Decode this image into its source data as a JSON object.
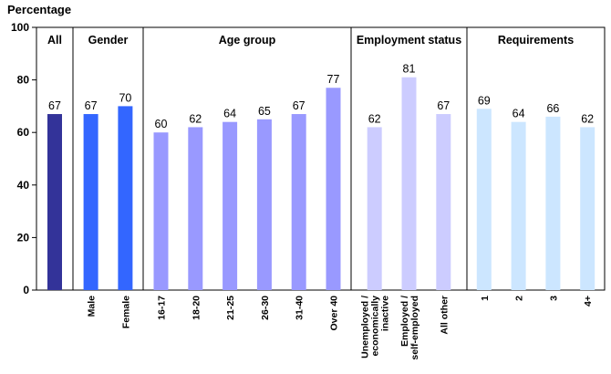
{
  "chart_data": {
    "type": "bar",
    "title": "",
    "ylabel": "Percentage",
    "xlabel": "",
    "ylim": [
      0,
      100
    ],
    "yticks": [
      0,
      20,
      40,
      60,
      80,
      100
    ],
    "grid": false,
    "groups": [
      {
        "name": "All",
        "color": "#333399",
        "bars": [
          {
            "category": "",
            "value": 67
          }
        ]
      },
      {
        "name": "Gender",
        "color": "#3366ff",
        "bars": [
          {
            "category": "Male",
            "value": 67
          },
          {
            "category": "Female",
            "value": 70
          }
        ]
      },
      {
        "name": "Age group",
        "color": "#9999ff",
        "bars": [
          {
            "category": "16-17",
            "value": 60
          },
          {
            "category": "18-20",
            "value": 62
          },
          {
            "category": "21-25",
            "value": 64
          },
          {
            "category": "26-30",
            "value": 65
          },
          {
            "category": "31-40",
            "value": 67
          },
          {
            "category": "Over 40",
            "value": 77
          }
        ]
      },
      {
        "name": "Employment status",
        "color": "#ccccff",
        "bars": [
          {
            "category": "Unemployed / economically inactive",
            "value": 62
          },
          {
            "category": "Employed / self-employed",
            "value": 81
          },
          {
            "category": "All other",
            "value": 67
          }
        ]
      },
      {
        "name": "Requirements",
        "color": "#cce6ff",
        "bars": [
          {
            "category": "1",
            "value": 69
          },
          {
            "category": "2",
            "value": 64
          },
          {
            "category": "3",
            "value": 66
          },
          {
            "category": "4+",
            "value": 62
          }
        ]
      }
    ]
  }
}
